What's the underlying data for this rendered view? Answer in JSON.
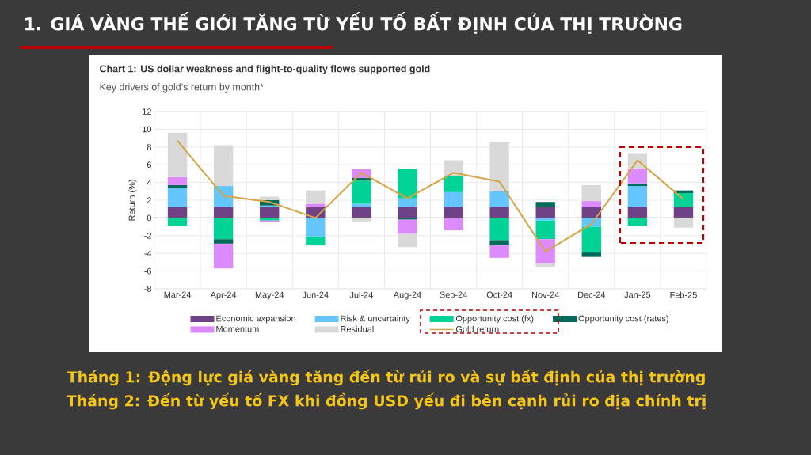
{
  "chart_data": {
    "type": "bar",
    "stacked": true,
    "title": "Chart 1: US dollar weakness and flight-to-quality flows supported gold",
    "subtitle": "Key drivers of gold’s return by month*",
    "annotations": [
      "1. GIÁ VÀNG THẾ GIỚI TĂNG TỪ YẾU TỐ BẤT ĐỊNH CỦA THỊ TRƯỜNG",
      "Tháng 1: Động lực giá vàng tăng đến từ rủi ro và sự bất định của thị trường",
      "Tháng 2: Đến từ yếu tố FX khi đồng USD yếu đi bên cạnh rủi ro địa chính trị"
    ],
    "ylabel": "Return (%)",
    "categories": [
      "Mar-24",
      "Apr-24",
      "May-24",
      "Jun-24",
      "Jul-24",
      "Aug-24",
      "Sep-24",
      "Oct-24",
      "Nov-24",
      "Dec-24",
      "Jan-25",
      "Feb-25"
    ],
    "series": [
      {
        "name": "Economic expansion",
        "color": "#6f4187",
        "values": [
          1.2,
          1.2,
          1.2,
          1.2,
          1.2,
          1.2,
          1.2,
          1.2,
          1.2,
          1.2,
          1.2,
          1.2
        ]
      },
      {
        "name": "Risk & uncertainty",
        "color": "#64c5ff",
        "values": [
          2.2,
          2.4,
          0.2,
          -2.1,
          0.4,
          1.0,
          1.7,
          1.8,
          -0.3,
          -1.0,
          2.4,
          null
        ]
      },
      {
        "name": "Opportunity cost (fx)",
        "color": "#00d395",
        "values": [
          -0.9,
          -2.4,
          -0.3,
          -0.9,
          2.6,
          3.3,
          1.8,
          -2.5,
          -2.1,
          -2.9,
          -0.9,
          1.6
        ]
      },
      {
        "name": "Opportunity cost (rates)",
        "color": "#006b5a",
        "values": [
          0.3,
          -0.5,
          0.6,
          -0.1,
          0.3,
          -0.2,
          null,
          -0.6,
          0.6,
          -0.5,
          0.3,
          0.3
        ]
      },
      {
        "name": "Momentum",
        "color": "#de8aff",
        "values": [
          0.9,
          -2.8,
          -0.2,
          0.4,
          1.0,
          -1.6,
          -1.4,
          -1.4,
          -2.7,
          0.7,
          1.7,
          null
        ]
      },
      {
        "name": "Residual",
        "color": "#d9d9d9",
        "values": [
          5.0,
          4.6,
          0.4,
          1.5,
          -0.4,
          -1.5,
          1.8,
          5.6,
          -0.5,
          1.8,
          1.7,
          -1.1
        ]
      },
      {
        "name": "Gold return",
        "type": "line",
        "color": "#d4a543",
        "values": [
          8.7,
          2.5,
          1.8,
          0.0,
          5.1,
          2.2,
          5.1,
          4.1,
          -3.8,
          -0.7,
          6.5,
          2.1
        ]
      }
    ],
    "ylim": [
      -8,
      12
    ],
    "yticks": [
      -8,
      -6,
      -4,
      -2,
      0,
      2,
      4,
      6,
      8,
      10,
      12
    ],
    "grid": true,
    "legend": "bottom"
  }
}
